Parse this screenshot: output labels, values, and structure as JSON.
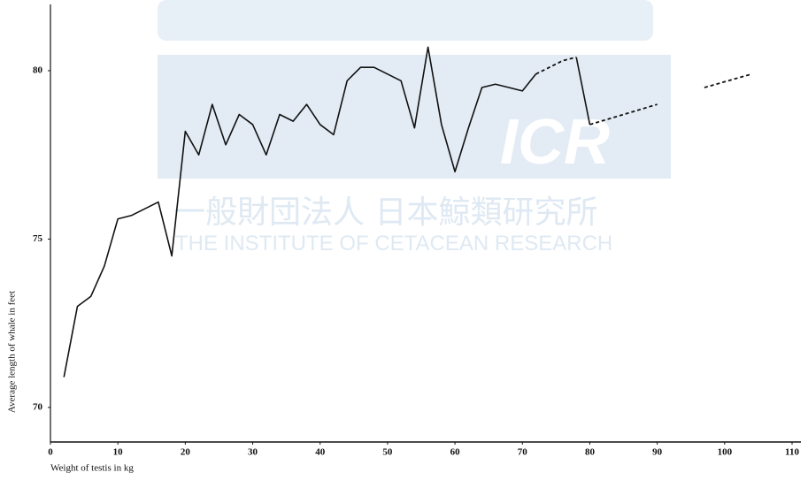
{
  "watermark": {
    "logo": "ICR",
    "japanese": "一般財団法人 日本鯨類研究所",
    "english": "THE INSTITUTE OF CETACEAN RESEARCH"
  },
  "chart_data": {
    "type": "line",
    "xlabel": "Weight of testis in kg",
    "ylabel": "Average length of whale in feet",
    "xlim": [
      0,
      110
    ],
    "xticks": [
      0,
      10,
      20,
      30,
      40,
      50,
      60,
      70,
      80,
      90,
      100,
      110
    ],
    "ylim": [
      69,
      82
    ],
    "yticks": [
      70,
      75,
      80
    ],
    "grid": false,
    "series": [
      {
        "color": "#111111",
        "dash": false,
        "x": [
          2,
          4,
          6,
          8,
          10,
          12,
          14,
          16,
          18,
          20,
          22,
          24,
          26,
          28,
          30,
          32,
          34,
          36,
          38,
          40,
          42,
          44,
          46,
          48,
          50,
          52,
          54,
          56,
          58,
          60,
          62,
          64,
          66,
          68,
          70,
          72
        ],
        "values": [
          70.9,
          73.0,
          73.3,
          74.2,
          75.6,
          75.7,
          75.9,
          76.1,
          74.5,
          78.2,
          77.5,
          79.0,
          77.8,
          78.7,
          78.4,
          77.5,
          78.7,
          78.5,
          79.0,
          78.4,
          78.1,
          79.7,
          80.1,
          80.1,
          79.9,
          79.7,
          78.3,
          80.7,
          78.4,
          77.0,
          78.3,
          79.5,
          79.6,
          79.5,
          79.4,
          79.9
        ]
      },
      {
        "color": "#111111",
        "dash": false,
        "x": [
          78,
          80
        ],
        "values": [
          80.4,
          78.4
        ]
      },
      {
        "color": "#111111",
        "dash": true,
        "x": [
          72,
          74,
          76,
          78
        ],
        "values": [
          79.9,
          80.1,
          80.3,
          80.4
        ]
      },
      {
        "color": "#111111",
        "dash": true,
        "x": [
          80,
          90
        ],
        "values": [
          78.4,
          79.0
        ]
      },
      {
        "color": "#111111",
        "dash": true,
        "x": [
          97,
          104
        ],
        "values": [
          79.5,
          79.9
        ]
      }
    ]
  }
}
